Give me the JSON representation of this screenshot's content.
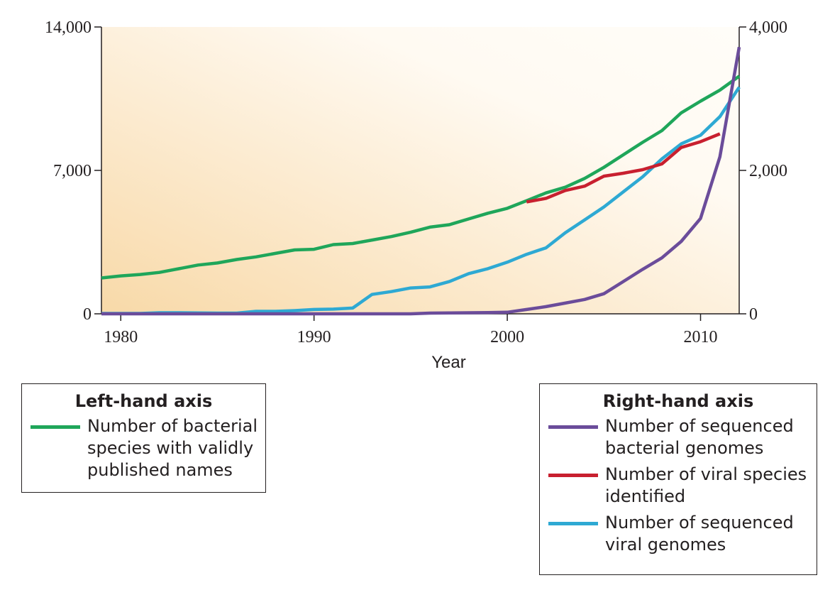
{
  "chart_data": {
    "type": "line",
    "xlabel": "Year",
    "xlim": [
      1979,
      2012
    ],
    "xticks": [
      "1980",
      "1990",
      "2000",
      "2010"
    ],
    "xtick_values": [
      1980,
      1990,
      2000,
      2010
    ],
    "left_axis": {
      "ylim": [
        0,
        14000
      ],
      "ticks": [
        "0",
        "7,000",
        "14,000"
      ],
      "tick_values": [
        0,
        7000,
        14000
      ]
    },
    "right_axis": {
      "ylim": [
        0,
        4000
      ],
      "ticks": [
        "0",
        "2,000",
        "4,000"
      ],
      "tick_values": [
        0,
        2000,
        4000
      ]
    },
    "series": [
      {
        "name": "Number of bacterial\nspecies with validly\npublished names",
        "axis": "left",
        "color": "#1fa65a",
        "x": [
          1979,
          1980,
          1981,
          1982,
          1983,
          1984,
          1985,
          1986,
          1987,
          1988,
          1989,
          1990,
          1991,
          1992,
          1993,
          1994,
          1995,
          1996,
          1997,
          1998,
          1999,
          2000,
          2001,
          2002,
          2003,
          2004,
          2005,
          2006,
          2007,
          2008,
          2009,
          2010,
          2011,
          2012
        ],
        "values": [
          1750,
          1850,
          1920,
          2020,
          2200,
          2380,
          2480,
          2650,
          2780,
          2950,
          3120,
          3150,
          3380,
          3430,
          3600,
          3770,
          3980,
          4230,
          4350,
          4630,
          4910,
          5150,
          5520,
          5900,
          6180,
          6610,
          7150,
          7760,
          8370,
          8940,
          9810,
          10380,
          10920,
          11600
        ]
      },
      {
        "name": "Number of sequenced\nbacterial genomes",
        "axis": "right",
        "color": "#6b4c9a",
        "x": [
          1979,
          1980,
          1981,
          1982,
          1983,
          1984,
          1985,
          1986,
          1987,
          1988,
          1989,
          1990,
          1991,
          1992,
          1993,
          1994,
          1995,
          1996,
          1997,
          1998,
          1999,
          2000,
          2001,
          2002,
          2003,
          2004,
          2005,
          2006,
          2007,
          2008,
          2009,
          2010,
          2011,
          2012
        ],
        "values": [
          0,
          0,
          0,
          0,
          0,
          0,
          0,
          0,
          0,
          0,
          0,
          0,
          0,
          0,
          0,
          0,
          0,
          10,
          12,
          15,
          18,
          22,
          60,
          100,
          150,
          200,
          280,
          450,
          620,
          780,
          1010,
          1330,
          2190,
          3720
        ]
      },
      {
        "name": "Number of viral species\nidentified",
        "axis": "right",
        "color": "#c8202f",
        "x": [
          2001,
          2002,
          2003,
          2004,
          2005,
          2006,
          2007,
          2008,
          2009,
          2010,
          2011
        ],
        "values": [
          1560,
          1610,
          1720,
          1780,
          1920,
          1960,
          2010,
          2090,
          2320,
          2400,
          2510
        ]
      },
      {
        "name": "Number of sequenced\nviral genomes",
        "axis": "right",
        "color": "#2ea9d3",
        "x": [
          1979,
          1980,
          1981,
          1982,
          1983,
          1984,
          1985,
          1986,
          1987,
          1988,
          1989,
          1990,
          1991,
          1992,
          1993,
          1994,
          1995,
          1996,
          1997,
          1998,
          1999,
          2000,
          2001,
          2002,
          2003,
          2004,
          2005,
          2006,
          2007,
          2008,
          2009,
          2010,
          2011,
          2012
        ],
        "values": [
          5,
          5,
          5,
          15,
          15,
          12,
          10,
          10,
          35,
          35,
          45,
          60,
          65,
          80,
          270,
          310,
          360,
          375,
          450,
          560,
          630,
          720,
          830,
          920,
          1130,
          1310,
          1490,
          1700,
          1910,
          2160,
          2370,
          2490,
          2750,
          3160
        ]
      }
    ],
    "legends": [
      {
        "title": "Left-hand axis",
        "entries": [
          0
        ]
      },
      {
        "title": "Right-hand axis",
        "entries": [
          1,
          2,
          3
        ]
      }
    ],
    "background": {
      "from": "#f8d9a8",
      "to": "#fffaf2"
    }
  }
}
